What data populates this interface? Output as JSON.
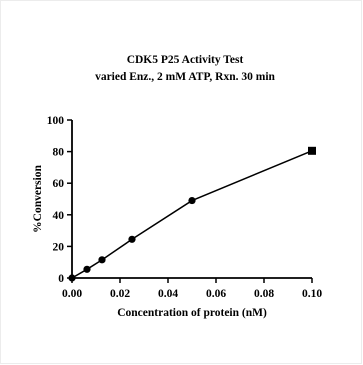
{
  "chart_data": {
    "type": "line",
    "title": "CDK5 P25 Activity Test",
    "subtitle": "varied Enz., 2 mM ATP, Rxn. 30 min",
    "xlabel": "Concentration of protein (nM)",
    "ylabel": "%Conversion",
    "xlim": [
      0,
      0.1
    ],
    "ylim": [
      0,
      100
    ],
    "x_ticks": [
      "0.00",
      "0.02",
      "0.04",
      "0.06",
      "0.08",
      "0.10"
    ],
    "y_ticks": [
      "0",
      "20",
      "40",
      "60",
      "80",
      "100"
    ],
    "grid": false,
    "series": [
      {
        "x": [
          0,
          0.00625,
          0.0125,
          0.025,
          0.05,
          0.1
        ],
        "y": [
          0,
          5.5,
          11.5,
          24.5,
          49,
          80.5
        ]
      }
    ]
  },
  "colors": {
    "line": "#000000",
    "marker": "#000000",
    "frame": "#ececec"
  }
}
